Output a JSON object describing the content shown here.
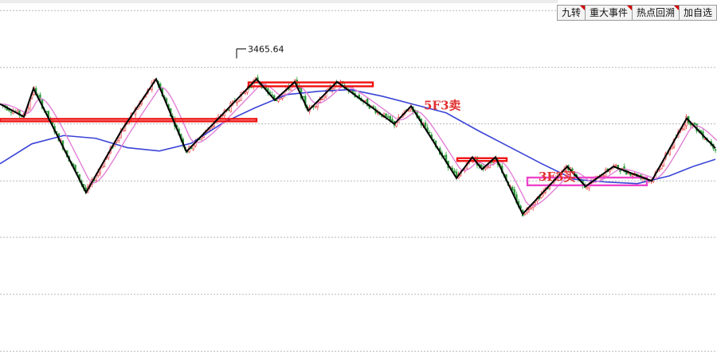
{
  "toolbar": {
    "buttons": [
      {
        "label": "九转",
        "flag": true
      },
      {
        "label": "重大事件",
        "flag": true
      },
      {
        "label": "热点回溯",
        "flag": true
      },
      {
        "label": "加自选",
        "flag": false
      }
    ]
  },
  "chart_data": {
    "type": "candlestick",
    "colors": {
      "up": "#e8363a",
      "down": "#2e9a3c",
      "ma_short": "#e27fd6",
      "ma_long": "#3a44d6",
      "zigzag": "#000000",
      "grid": "#b8b8b8",
      "box_red": "#ee1111",
      "box_magenta": "#ee44cc",
      "annotation": "#e13030"
    },
    "x": [
      0,
      898
    ],
    "ylim": [
      2905,
      3554
    ],
    "grid": true,
    "grid_levels": [
      3535,
      3432,
      3330,
      3227,
      3125,
      3022,
      2919
    ],
    "high_annotation": {
      "x": 297,
      "value": 3465.64,
      "label": "3465.64"
    },
    "zigzag": [
      [
        0,
        3366
      ],
      [
        30,
        3343
      ],
      [
        42,
        3394
      ],
      [
        60,
        3343
      ],
      [
        108,
        3206
      ],
      [
        152,
        3317
      ],
      [
        196,
        3411
      ],
      [
        234,
        3280
      ],
      [
        322,
        3411
      ],
      [
        345,
        3373
      ],
      [
        370,
        3406
      ],
      [
        387,
        3354
      ],
      [
        423,
        3406
      ],
      [
        495,
        3330
      ],
      [
        516,
        3362
      ],
      [
        573,
        3232
      ],
      [
        593,
        3270
      ],
      [
        605,
        3248
      ],
      [
        622,
        3270
      ],
      [
        656,
        3167
      ],
      [
        712,
        3253
      ],
      [
        735,
        3217
      ],
      [
        770,
        3253
      ],
      [
        818,
        3227
      ],
      [
        862,
        3340
      ],
      [
        898,
        3286
      ]
    ],
    "ma_long": [
      [
        0,
        3258
      ],
      [
        40,
        3294
      ],
      [
        80,
        3309
      ],
      [
        120,
        3304
      ],
      [
        160,
        3287
      ],
      [
        200,
        3281
      ],
      [
        240,
        3295
      ],
      [
        280,
        3332
      ],
      [
        320,
        3359
      ],
      [
        360,
        3383
      ],
      [
        400,
        3389
      ],
      [
        440,
        3392
      ],
      [
        480,
        3380
      ],
      [
        520,
        3365
      ],
      [
        560,
        3350
      ],
      [
        600,
        3318
      ],
      [
        640,
        3288
      ],
      [
        680,
        3258
      ],
      [
        720,
        3230
      ],
      [
        760,
        3225
      ],
      [
        800,
        3222
      ],
      [
        840,
        3236
      ],
      [
        870,
        3253
      ],
      [
        898,
        3266
      ]
    ],
    "annotations": [
      {
        "text": "5F3卖",
        "x": 532,
        "value": 3356,
        "color": "#e13030"
      },
      {
        "text": "3F3买",
        "x": 676,
        "value": 3227,
        "color": "#e13030"
      }
    ],
    "boxes": [
      {
        "x0": 0,
        "x1": 322,
        "y0": 3339,
        "y1": 3335,
        "color": "#ee1111"
      },
      {
        "x0": 312,
        "x1": 468,
        "y0": 3405,
        "y1": 3398,
        "color": "#ee1111"
      },
      {
        "x0": 574,
        "x1": 636,
        "y0": 3268,
        "y1": 3263,
        "color": "#ee1111"
      },
      {
        "x0": 662,
        "x1": 812,
        "y0": 3233,
        "y1": 3219,
        "color": "#ee44cc"
      }
    ]
  }
}
